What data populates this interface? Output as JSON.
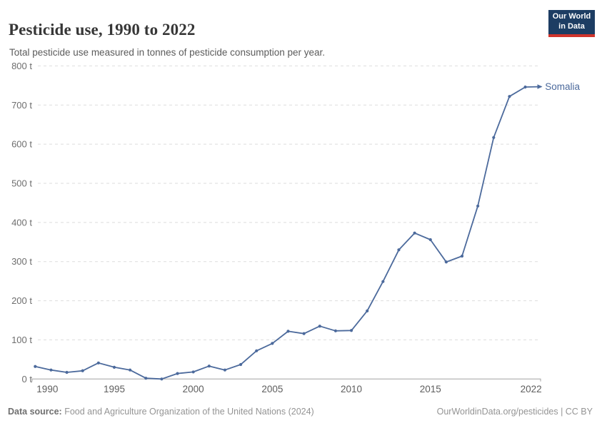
{
  "header": {
    "title": "Pesticide use, 1990 to 2022",
    "subtitle": "Total pesticide use measured in tonnes of pesticide consumption per year.",
    "logo": {
      "line1": "Our World",
      "line2": "in Data"
    }
  },
  "chart_data": {
    "type": "line",
    "title": "Pesticide use, 1990 to 2022",
    "ylabel": "",
    "xlabel": "",
    "unit": "t",
    "ylim": [
      0,
      800
    ],
    "yticks": [
      0,
      100,
      200,
      300,
      400,
      500,
      600,
      700,
      800
    ],
    "ytick_suffix": " t",
    "xticks": [
      1990,
      1995,
      2000,
      2005,
      2010,
      2015,
      2022
    ],
    "grid": "dashed-horizontal",
    "legend": "line-end-label",
    "x": [
      1990,
      1991,
      1992,
      1993,
      1994,
      1995,
      1996,
      1997,
      1998,
      1999,
      2000,
      2001,
      2002,
      2003,
      2004,
      2005,
      2006,
      2007,
      2008,
      2009,
      2010,
      2011,
      2012,
      2013,
      2014,
      2015,
      2016,
      2017,
      2018,
      2019,
      2020,
      2021,
      2022
    ],
    "series": [
      {
        "name": "Somalia",
        "color": "#4C6A9C",
        "values": [
          32,
          23,
          17,
          21,
          41,
          30,
          23,
          2,
          0,
          14,
          18,
          33,
          23,
          37,
          72,
          91,
          122,
          116,
          135,
          123,
          124,
          174,
          249,
          330,
          373,
          356,
          299,
          314,
          442,
          617,
          722,
          746,
          747
        ]
      }
    ]
  },
  "footer": {
    "source_label": "Data source:",
    "source_text": " Food and Agriculture Organization of the United Nations (2024)",
    "credit": "OurWorldinData.org/pesticides | CC BY"
  },
  "colors": {
    "line": "#4C6A9C",
    "grid": "#dddddd",
    "axis": "#a3a3a3",
    "ytick_text": "#6e6e6e",
    "xtick_text": "#5e5e5e",
    "title_text": "#373737",
    "subtitle_text": "#5b5b5b",
    "logo_bg": "#1d3d63",
    "logo_red": "#d0342c"
  }
}
